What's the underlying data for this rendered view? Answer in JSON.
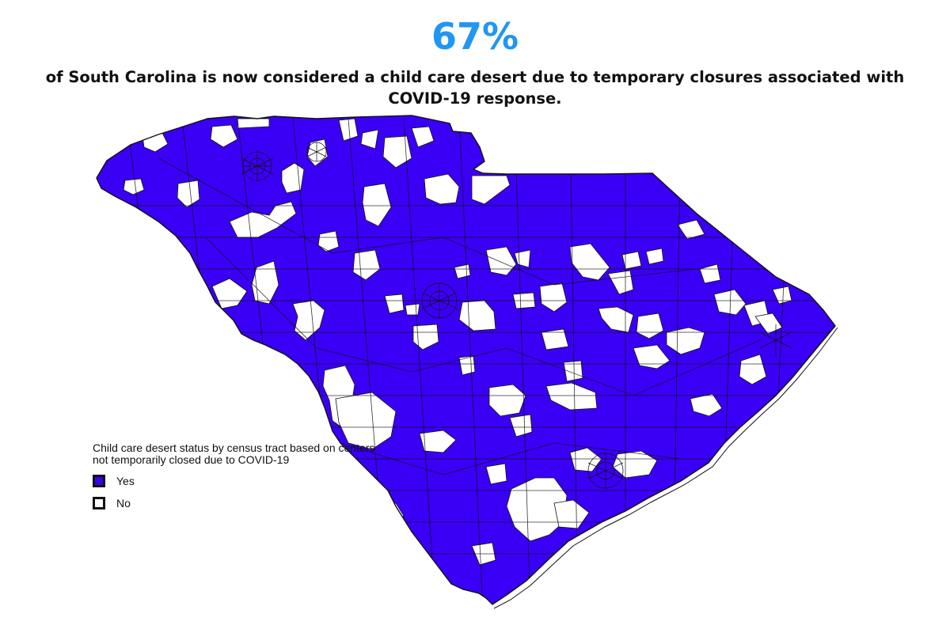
{
  "header": {
    "stat": "67%",
    "headline": "of South Carolina is now considered a child care desert due to temporary closures associated with COVID-19 response."
  },
  "legend": {
    "title": "Child care desert status by census tract based on centers not temporarily closed due to COVID-19",
    "items": [
      {
        "label": "Yes",
        "color": "#3a00f5"
      },
      {
        "label": "No",
        "color": "#ffffff"
      }
    ]
  },
  "colors": {
    "desert": "#3a00f5",
    "not_desert": "#ffffff",
    "stat": "#2196f3",
    "border": "#111111"
  }
}
